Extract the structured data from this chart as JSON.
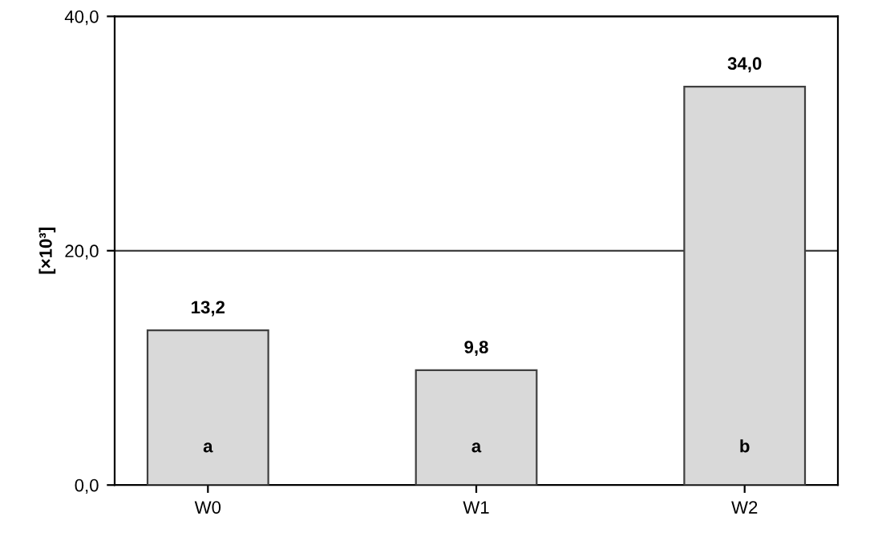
{
  "chart_data": {
    "type": "bar",
    "ylabel": "[×10³]",
    "categories": [
      "W0",
      "W1",
      "W2"
    ],
    "values": [
      13.2,
      9.8,
      34.0
    ],
    "color": "#d9d9d9",
    "value_labels": [
      "13,2",
      "9,8",
      "34,0"
    ],
    "ylim": [
      0,
      40
    ],
    "yticks": [
      {
        "value": 0,
        "label": "0,0"
      },
      {
        "value": 20,
        "label": "20,0"
      },
      {
        "value": 40,
        "label": "40,0"
      }
    ],
    "grid": "y",
    "annotations": [
      "a",
      "a",
      "b"
    ]
  }
}
